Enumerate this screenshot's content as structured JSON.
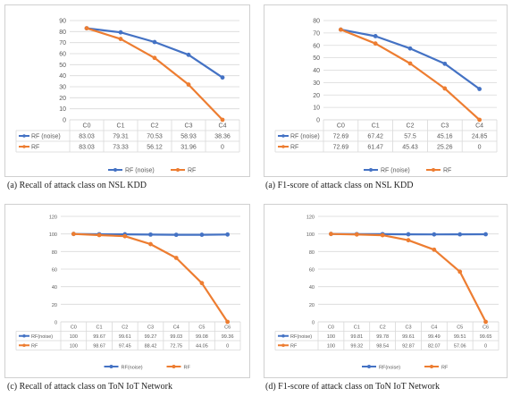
{
  "colors": {
    "noise": "#4472C4",
    "rf": "#ED7D31",
    "grid": "#d9d9d9",
    "text": "#595959"
  },
  "panels": [
    {
      "caption": "(a) Recall of attack class  on NSL KDD",
      "chart_data": {
        "type": "line",
        "categories": [
          "C0",
          "C1",
          "C2",
          "C3",
          "C4"
        ],
        "ylim": [
          0,
          90
        ],
        "yticks": [
          0,
          10,
          20,
          30,
          40,
          50,
          60,
          70,
          80,
          90
        ],
        "series": [
          {
            "name": "RF (noise)",
            "values": [
              83.03,
              79.31,
              70.53,
              58.93,
              38.36
            ],
            "labels": [
              "83.03",
              "79.31",
              "70.53",
              "58.93",
              "38.36"
            ]
          },
          {
            "name": "RF",
            "values": [
              83.03,
              73.33,
              56.12,
              31.96,
              0
            ],
            "labels": [
              "83.03",
              "73.33",
              "56.12",
              "31.96",
              "0"
            ]
          }
        ]
      }
    },
    {
      "caption": "(a) F1-score of attack class  on NSL KDD",
      "chart_data": {
        "type": "line",
        "categories": [
          "C0",
          "C1",
          "C2",
          "C3",
          "C4"
        ],
        "ylim": [
          0,
          80
        ],
        "yticks": [
          0,
          10,
          20,
          30,
          40,
          50,
          60,
          70,
          80
        ],
        "series": [
          {
            "name": "RF (noise)",
            "values": [
              72.69,
              67.42,
              57.5,
              45.16,
              24.85
            ],
            "labels": [
              "72.69",
              "67.42",
              "57.5",
              "45.16",
              "24.85"
            ]
          },
          {
            "name": "RF",
            "values": [
              72.69,
              61.47,
              45.43,
              25.26,
              0
            ],
            "labels": [
              "72.69",
              "61.47",
              "45.43",
              "25.26",
              "0"
            ]
          }
        ]
      }
    },
    {
      "caption": "(c) Recall of attack class  on ToN IoT Network",
      "chart_data": {
        "type": "line",
        "categories": [
          "C0",
          "C1",
          "C2",
          "C3",
          "C4",
          "C5",
          "C6"
        ],
        "ylim": [
          0,
          120
        ],
        "yticks": [
          0,
          20,
          40,
          60,
          80,
          100,
          120
        ],
        "series": [
          {
            "name": "RF(noise)",
            "values": [
              100,
              99.67,
              99.61,
              99.27,
              99.03,
              99.08,
              99.36
            ],
            "labels": [
              "100",
              "99.67",
              "99.61",
              "99.27",
              "99.03",
              "99.08",
              "99.36"
            ]
          },
          {
            "name": "RF",
            "values": [
              100,
              98.67,
              97.45,
              88.42,
              72.75,
              44.05,
              0
            ],
            "labels": [
              "100",
              "98.67",
              "97.45",
              "88.42",
              "72.75",
              "44.05",
              "0"
            ]
          }
        ]
      }
    },
    {
      "caption": "(d) F1-score of attack class  on ToN IoT Network",
      "chart_data": {
        "type": "line",
        "categories": [
          "C0",
          "C1",
          "C2",
          "C3",
          "C4",
          "C5",
          "C6"
        ],
        "ylim": [
          0,
          120
        ],
        "yticks": [
          0,
          20,
          40,
          60,
          80,
          100,
          120
        ],
        "series": [
          {
            "name": "RF(noise)",
            "values": [
              100,
              99.81,
              99.78,
              99.61,
              99.49,
              99.51,
              99.65
            ],
            "labels": [
              "100",
              "99.81",
              "99.78",
              "99.61",
              "99.49",
              "99.51",
              "99.65"
            ]
          },
          {
            "name": "RF",
            "values": [
              100,
              99.32,
              98.54,
              92.87,
              82.07,
              57.06,
              0
            ],
            "labels": [
              "100",
              "99.32",
              "98.54",
              "92.87",
              "82.07",
              "57.06",
              "0"
            ]
          }
        ]
      }
    }
  ]
}
